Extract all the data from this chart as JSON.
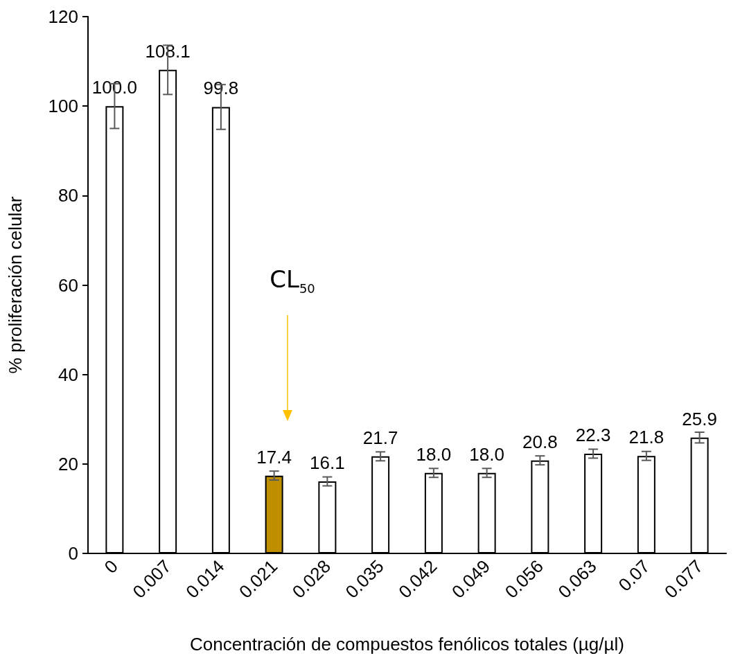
{
  "chart_data": {
    "type": "bar",
    "xlabel": "Concentración de compuestos fenólicos totales (µg/µl)",
    "ylabel": "% proliferación celular",
    "categories": [
      "0",
      "0.007",
      "0.014",
      "0.021",
      "0.028",
      "0.035",
      "0.042",
      "0.049",
      "0.056",
      "0.063",
      "0.07",
      "0.077"
    ],
    "values": [
      100.0,
      108.1,
      99.8,
      17.4,
      16.1,
      21.7,
      18.0,
      18.0,
      20.8,
      22.3,
      21.8,
      25.9
    ],
    "errors": [
      5,
      5.5,
      5,
      1,
      1,
      1,
      1,
      1,
      1,
      1,
      1,
      1.2
    ],
    "colors": [
      "#ffffff",
      "#ffffff",
      "#ffffff",
      "#bf8f00",
      "#ffffff",
      "#ffffff",
      "#ffffff",
      "#ffffff",
      "#ffffff",
      "#ffffff",
      "#ffffff",
      "#ffffff"
    ],
    "value_labels": [
      "100.0",
      "108.1",
      "99.8",
      "17.4",
      "16.1",
      "21.7",
      "18.0",
      "18.0",
      "20.8",
      "22.3",
      "21.8",
      "25.9"
    ],
    "ylim": [
      0,
      120
    ],
    "yticks": [
      0,
      20,
      40,
      60,
      80,
      100,
      120
    ],
    "grid": false,
    "annotations": [
      "CL$_{50}$"
    ]
  }
}
